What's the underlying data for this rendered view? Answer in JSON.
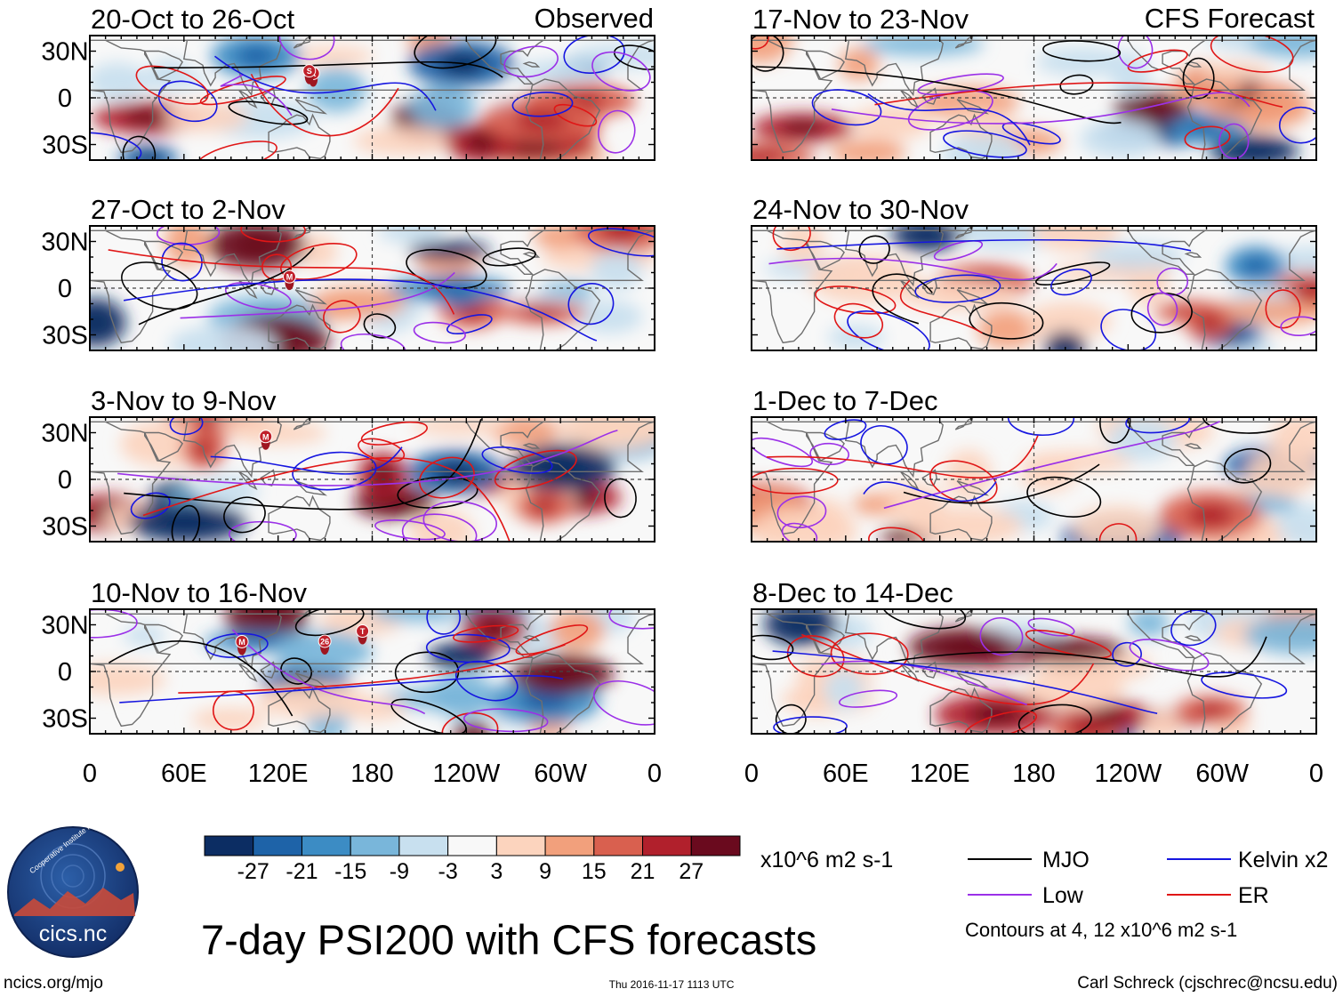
{
  "header": {
    "left_label": "Observed",
    "right_label": "CFS Forecast"
  },
  "chart_data": [
    {
      "type": "heatmap",
      "panel": "observed-1",
      "title": "20-Oct to 26-Oct",
      "storms": [
        "K",
        "S"
      ]
    },
    {
      "type": "heatmap",
      "panel": "observed-2",
      "title": "27-Oct to 2-Nov",
      "storms": [
        "M"
      ]
    },
    {
      "type": "heatmap",
      "panel": "observed-3",
      "title": "3-Nov to 9-Nov",
      "storms": [
        "M"
      ]
    },
    {
      "type": "heatmap",
      "panel": "observed-4",
      "title": "10-Nov to 16-Nov",
      "storms": [
        "M",
        "26",
        "T"
      ]
    },
    {
      "type": "heatmap",
      "panel": "forecast-1",
      "title": "17-Nov to 23-Nov",
      "storms": []
    },
    {
      "type": "heatmap",
      "panel": "forecast-2",
      "title": "24-Nov to 30-Nov",
      "storms": []
    },
    {
      "type": "heatmap",
      "panel": "forecast-3",
      "title": "1-Dec to 7-Dec",
      "storms": []
    },
    {
      "type": "heatmap",
      "panel": "forecast-4",
      "title": "8-Dec to 14-Dec",
      "storms": []
    }
  ],
  "axes": {
    "y_ticks": [
      "30N",
      "0",
      "30S"
    ],
    "x_ticks": [
      "0",
      "60E",
      "120E",
      "180",
      "120W",
      "60W",
      "0"
    ]
  },
  "colorbar": {
    "labels": [
      "-27",
      "-21",
      "-15",
      "-9",
      "-3",
      "3",
      "9",
      "15",
      "21",
      "27"
    ],
    "colors": [
      "#0c2d63",
      "#1e63a8",
      "#3c8cc4",
      "#79b6da",
      "#c8e0ef",
      "#f8f8f8",
      "#fcd4be",
      "#f2a07c",
      "#d9604f",
      "#b1202c",
      "#6a0a1e"
    ],
    "units": "x10^6 m2 s-1"
  },
  "legend": {
    "items": [
      {
        "label": "MJO",
        "color": "#000000"
      },
      {
        "label": "Kelvin x2",
        "color": "#1616e0"
      },
      {
        "label": "Low",
        "color": "#9b30e8"
      },
      {
        "label": "ER",
        "color": "#e01616"
      }
    ],
    "note": "Contours at 4, 12 x10^6 m2 s-1"
  },
  "main_title": "7-day PSI200 with CFS forecasts",
  "logo": {
    "name": "Cooperative Institute for Climate and Satellites",
    "short": "cics.nc"
  },
  "footer": {
    "website": "ncics.org/mjo",
    "timestamp": "Thu 2016-11-17 1113 UTC",
    "author": "Carl Schreck (cjschrec@ncsu.edu)"
  }
}
